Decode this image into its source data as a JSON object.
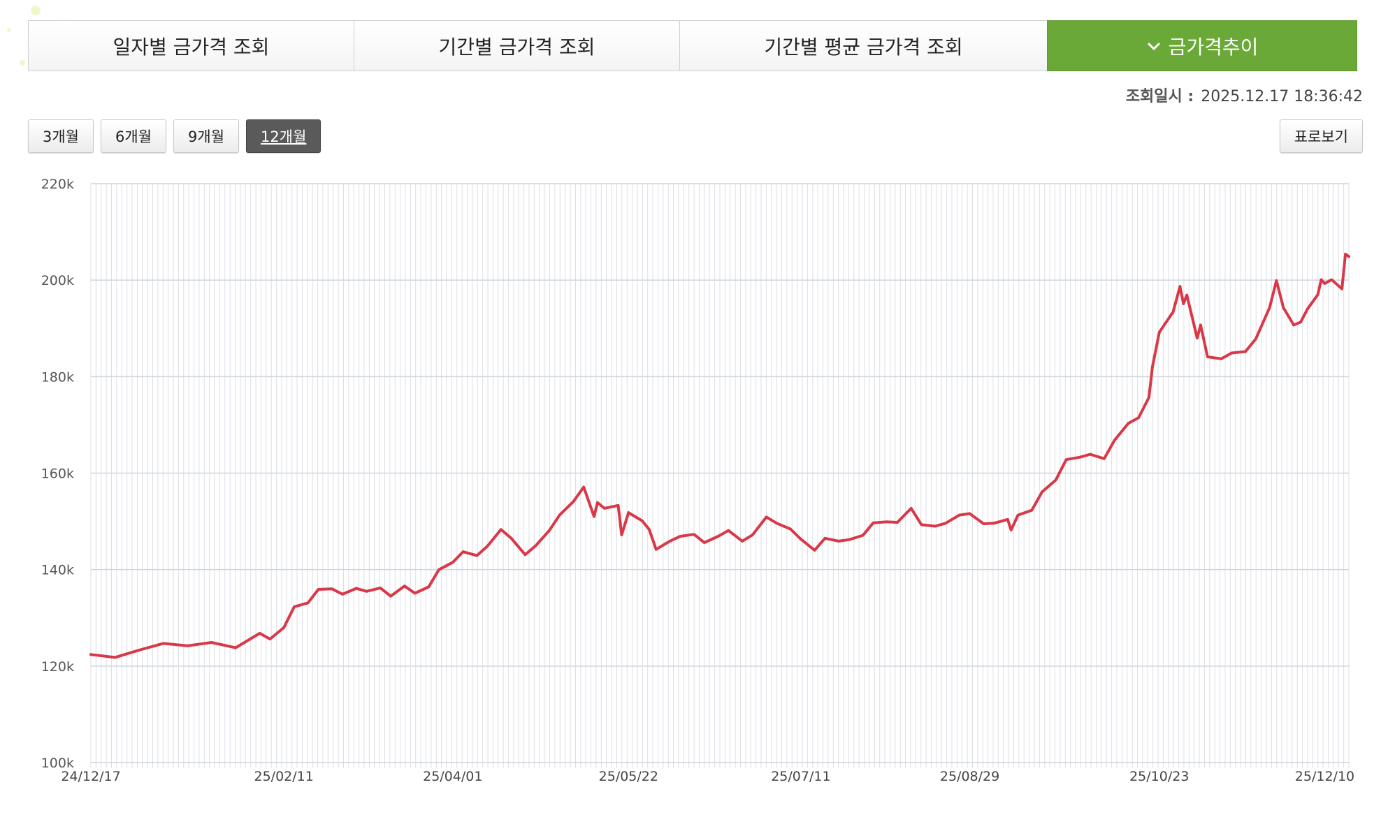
{
  "tabs": [
    {
      "label": "일자별 금가격 조회",
      "active": false
    },
    {
      "label": "기간별 금가격 조회",
      "active": false
    },
    {
      "label": "기간별 평균 금가격 조회",
      "active": false
    },
    {
      "label": "금가격추이",
      "active": true
    }
  ],
  "query_time": {
    "label": "조회일시 :",
    "value": "2025.12.17 18:36:42"
  },
  "period_buttons": [
    {
      "label": "3개월",
      "active": false
    },
    {
      "label": "6개월",
      "active": false
    },
    {
      "label": "9개월",
      "active": false
    },
    {
      "label": "12개월",
      "active": true
    }
  ],
  "table_view_button": "표로보기",
  "colors": {
    "accent": "#6aa937",
    "line": "#d93848",
    "grid": "#dcdfe6"
  },
  "icons": {
    "active_tab": "chevron-down-icon"
  },
  "chart_data": {
    "type": "line",
    "title": "",
    "xlabel": "",
    "ylabel": "",
    "ylim": [
      100000,
      220000
    ],
    "yticks": [
      100000,
      120000,
      140000,
      160000,
      180000,
      200000,
      220000
    ],
    "ytick_labels": [
      "100k",
      "120k",
      "140k",
      "160k",
      "180k",
      "200k",
      "220k"
    ],
    "xtick_labels": [
      "24/12/17",
      "25/02/11",
      "25/04/01",
      "25/05/22",
      "25/07/11",
      "25/08/29",
      "25/10/23",
      "25/12/10"
    ],
    "grid": true,
    "legend": "none",
    "series": [
      {
        "name": "",
        "points": [
          [
            "24/12/17",
            122400
          ],
          [
            "24/12/24",
            121800
          ],
          [
            "24/12/31",
            123300
          ],
          [
            "25/01/07",
            124700
          ],
          [
            "25/01/14",
            124200
          ],
          [
            "25/01/21",
            124900
          ],
          [
            "25/01/28",
            123800
          ],
          [
            "25/02/04",
            126800
          ],
          [
            "25/02/07",
            125600
          ],
          [
            "25/02/11",
            128000
          ],
          [
            "25/02/14",
            132300
          ],
          [
            "25/02/18",
            133100
          ],
          [
            "25/02/21",
            135900
          ],
          [
            "25/02/25",
            136000
          ],
          [
            "25/02/28",
            134900
          ],
          [
            "25/03/04",
            136100
          ],
          [
            "25/03/07",
            135500
          ],
          [
            "25/03/11",
            136200
          ],
          [
            "25/03/14",
            134500
          ],
          [
            "25/03/18",
            136600
          ],
          [
            "25/03/21",
            135100
          ],
          [
            "25/03/25",
            136400
          ],
          [
            "25/03/28",
            140000
          ],
          [
            "25/04/01",
            141500
          ],
          [
            "25/04/04",
            143700
          ],
          [
            "25/04/08",
            142900
          ],
          [
            "25/04/11",
            144800
          ],
          [
            "25/04/15",
            148300
          ],
          [
            "25/04/18",
            146500
          ],
          [
            "25/04/22",
            143100
          ],
          [
            "25/04/25",
            144900
          ],
          [
            "25/04/29",
            148100
          ],
          [
            "25/05/02",
            151300
          ],
          [
            "25/05/06",
            154100
          ],
          [
            "25/05/09",
            157100
          ],
          [
            "25/05/12",
            151000
          ],
          [
            "25/05/13",
            153900
          ],
          [
            "25/05/15",
            152700
          ],
          [
            "25/05/19",
            153300
          ],
          [
            "25/05/20",
            147200
          ],
          [
            "25/05/22",
            151800
          ],
          [
            "25/05/26",
            150100
          ],
          [
            "25/05/28",
            148300
          ],
          [
            "25/05/30",
            144200
          ],
          [
            "25/06/03",
            145900
          ],
          [
            "25/06/06",
            146900
          ],
          [
            "25/06/10",
            147300
          ],
          [
            "25/06/13",
            145600
          ],
          [
            "25/06/17",
            146900
          ],
          [
            "25/06/20",
            148100
          ],
          [
            "25/06/24",
            145900
          ],
          [
            "25/06/27",
            147200
          ],
          [
            "25/07/01",
            150900
          ],
          [
            "25/07/04",
            149600
          ],
          [
            "25/07/08",
            148400
          ],
          [
            "25/07/11",
            146300
          ],
          [
            "25/07/15",
            144000
          ],
          [
            "25/07/18",
            146500
          ],
          [
            "25/07/22",
            145900
          ],
          [
            "25/07/25",
            146200
          ],
          [
            "25/07/29",
            147100
          ],
          [
            "25/08/01",
            149700
          ],
          [
            "25/08/05",
            149900
          ],
          [
            "25/08/08",
            149800
          ],
          [
            "25/08/12",
            152700
          ],
          [
            "25/08/15",
            149300
          ],
          [
            "25/08/19",
            149000
          ],
          [
            "25/08/22",
            149600
          ],
          [
            "25/08/26",
            151300
          ],
          [
            "25/08/29",
            151600
          ],
          [
            "25/09/02",
            149500
          ],
          [
            "25/09/05",
            149600
          ],
          [
            "25/09/09",
            150400
          ],
          [
            "25/09/10",
            148200
          ],
          [
            "25/09/12",
            151300
          ],
          [
            "25/09/16",
            152300
          ],
          [
            "25/09/19",
            156100
          ],
          [
            "25/09/23",
            158600
          ],
          [
            "25/09/26",
            162800
          ],
          [
            "25/09/30",
            163300
          ],
          [
            "25/10/03",
            163900
          ],
          [
            "25/10/07",
            163000
          ],
          [
            "25/10/10",
            166800
          ],
          [
            "25/10/14",
            170300
          ],
          [
            "25/10/17",
            171500
          ],
          [
            "25/10/20",
            175700
          ],
          [
            "25/10/21",
            182000
          ],
          [
            "25/10/23",
            189200
          ],
          [
            "25/10/27",
            193400
          ],
          [
            "25/10/29",
            198700
          ],
          [
            "25/10/30",
            195100
          ],
          [
            "25/10/31",
            196900
          ],
          [
            "25/11/03",
            188000
          ],
          [
            "25/11/04",
            190700
          ],
          [
            "25/11/06",
            184100
          ],
          [
            "25/11/10",
            183700
          ],
          [
            "25/11/13",
            184900
          ],
          [
            "25/11/17",
            185200
          ],
          [
            "25/11/20",
            187800
          ],
          [
            "25/11/24",
            194300
          ],
          [
            "25/11/26",
            199900
          ],
          [
            "25/11/28",
            194300
          ],
          [
            "25/12/01",
            190700
          ],
          [
            "25/12/03",
            191300
          ],
          [
            "25/12/05",
            194000
          ],
          [
            "25/12/08",
            197000
          ],
          [
            "25/12/09",
            200100
          ],
          [
            "25/12/10",
            199300
          ],
          [
            "25/12/12",
            200100
          ],
          [
            "25/12/15",
            198200
          ],
          [
            "25/12/16",
            205400
          ],
          [
            "25/12/17",
            204900
          ]
        ]
      }
    ]
  }
}
